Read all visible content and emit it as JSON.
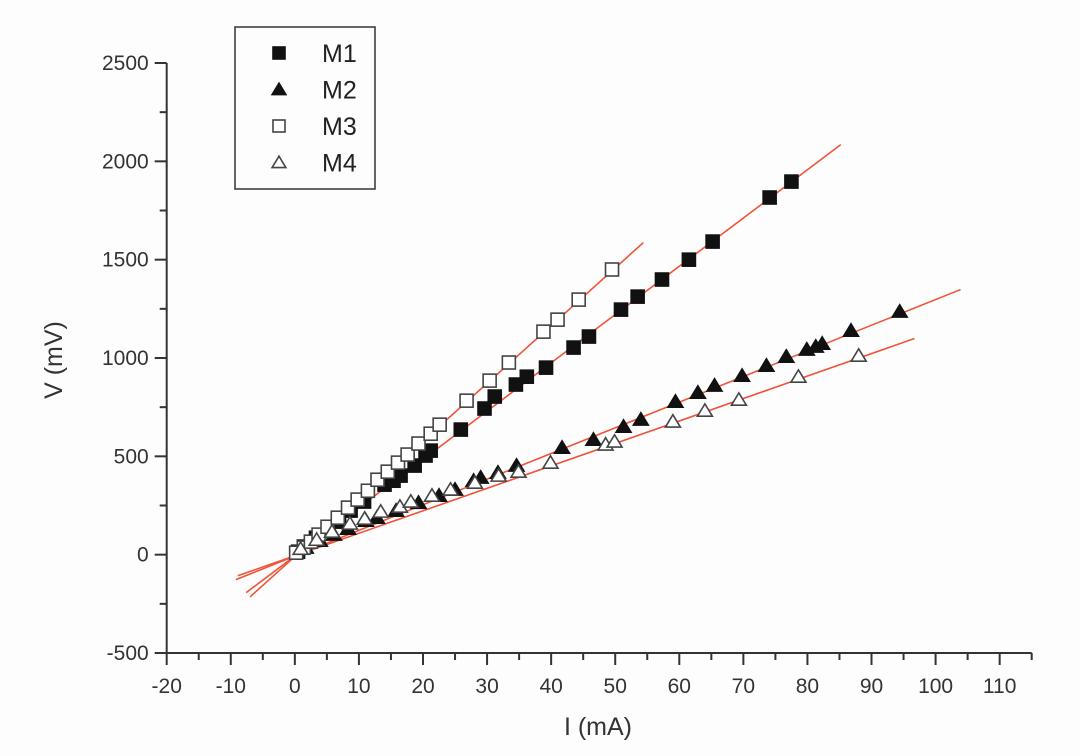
{
  "chart_data": {
    "type": "scatter",
    "title": "",
    "xlabel": "I (mA)",
    "ylabel": "V (mV)",
    "xlim": [
      -20,
      115
    ],
    "ylim": [
      -500,
      2500
    ],
    "xticks": [
      -20,
      -10,
      0,
      10,
      20,
      30,
      40,
      50,
      60,
      70,
      80,
      90,
      100,
      110
    ],
    "yticks": [
      -500,
      0,
      500,
      1000,
      1500,
      2000,
      2500
    ],
    "grid": false,
    "legend_position": "top-left",
    "fit_color": "#f0533a",
    "series": [
      {
        "name": "M1",
        "marker": "filled-square",
        "x": [
          0.5,
          1.4,
          3.3,
          5.3,
          6.9,
          8.7,
          10.8,
          14.0,
          15.4,
          16.5,
          18.7,
          20.4,
          21.2,
          25.9,
          29.6,
          31.2,
          34.5,
          36.2,
          39.2,
          43.5,
          45.9,
          50.9,
          53.5,
          57.3,
          61.5,
          65.2,
          74.1,
          77.5
        ],
        "y": [
          15,
          41,
          86,
          127,
          168,
          224,
          270,
          356,
          376,
          402,
          453,
          504,
          529,
          636,
          743,
          804,
          865,
          905,
          951,
          1053,
          1109,
          1246,
          1312,
          1399,
          1500,
          1592,
          1816,
          1897
        ],
        "fit": {
          "x": [
            -7.6,
            85.2
          ],
          "y": [
            -193,
            2085
          ]
        }
      },
      {
        "name": "M2",
        "marker": "filled-triangle",
        "x": [
          1.7,
          3.9,
          6.1,
          8.3,
          11.1,
          12.8,
          15.8,
          19.3,
          22.5,
          25.0,
          27.9,
          29.0,
          31.7,
          34.6,
          41.7,
          46.6,
          51.3,
          54.0,
          59.4,
          62.9,
          65.5,
          69.8,
          73.6,
          76.7,
          79.9,
          81.3,
          82.3,
          86.8,
          94.4
        ],
        "y": [
          36,
          71,
          102,
          132,
          173,
          188,
          224,
          264,
          300,
          331,
          376,
          392,
          417,
          453,
          544,
          585,
          651,
          687,
          778,
          824,
          860,
          910,
          961,
          1007,
          1043,
          1058,
          1073,
          1139,
          1236
        ],
        "fit": {
          "x": [
            -9.2,
            103.9
          ],
          "y": [
            -127,
            1348
          ]
        }
      },
      {
        "name": "M3",
        "marker": "open-square",
        "x": [
          0.2,
          1.4,
          2.5,
          3.7,
          5.1,
          6.7,
          8.3,
          9.8,
          11.4,
          12.9,
          14.5,
          16.1,
          17.6,
          19.3,
          21.2,
          22.6,
          26.8,
          30.4,
          33.4,
          38.8,
          41.0,
          44.3,
          49.5
        ],
        "y": [
          10,
          36,
          66,
          102,
          142,
          188,
          239,
          280,
          325,
          381,
          422,
          468,
          509,
          565,
          615,
          661,
          783,
          885,
          977,
          1134,
          1195,
          1297,
          1450
        ],
        "fit": {
          "x": [
            -7.0,
            54.4
          ],
          "y": [
            -215,
            1587
          ]
        }
      },
      {
        "name": "M4",
        "marker": "open-triangle",
        "x": [
          0.9,
          3.4,
          5.8,
          8.6,
          10.9,
          13.4,
          16.4,
          18.1,
          21.4,
          24.3,
          28.1,
          31.8,
          34.9,
          39.9,
          48.5,
          49.9,
          59.0,
          64.0,
          69.3,
          78.6,
          88.0
        ],
        "y": [
          30,
          76,
          117,
          158,
          183,
          219,
          244,
          270,
          300,
          331,
          366,
          402,
          422,
          468,
          560,
          575,
          677,
          732,
          788,
          905,
          1012
        ],
        "fit": {
          "x": [
            -8.9,
            96.7
          ],
          "y": [
            -107,
            1099
          ]
        }
      }
    ]
  }
}
